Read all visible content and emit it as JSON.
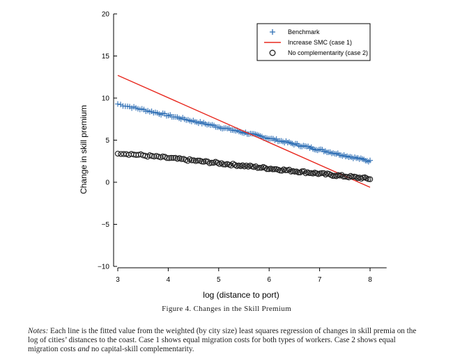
{
  "chart_data": {
    "type": "scatter",
    "title": "",
    "xlabel": "log (distance to port)",
    "ylabel": "Change in skill premium",
    "xlim": [
      3,
      8.3
    ],
    "ylim": [
      -10,
      20
    ],
    "x_ticks": [
      "3",
      "4",
      "5",
      "6",
      "7",
      "8"
    ],
    "y_ticks": [
      "20",
      "15",
      "10",
      "5",
      "0",
      "−5",
      "−10"
    ],
    "x_tick_values": [
      3,
      4,
      5,
      6,
      7,
      8
    ],
    "y_tick_values": [
      20,
      15,
      10,
      5,
      0,
      -5,
      -10
    ],
    "legend_position": "top-right",
    "series": [
      {
        "name": "Benchmark",
        "marker": "plus",
        "color": "#2f6fb5",
        "x_range": [
          3,
          8
        ],
        "y_range": [
          9.3,
          2.5
        ]
      },
      {
        "name": "Increase SMC (case 1)",
        "marker": "line",
        "color": "#e8281e",
        "x_range": [
          3,
          8
        ],
        "y_range": [
          12.7,
          -0.6
        ]
      },
      {
        "name": "No complementarity (case 2)",
        "marker": "circle",
        "color": "#222222",
        "x_range": [
          3,
          8
        ],
        "y_range": [
          3.5,
          0.4
        ]
      }
    ]
  },
  "caption": {
    "figure_label": "Figure 4. Changes in the Skill Premium"
  },
  "notes": {
    "label": "Notes:",
    "text": " Each line is the fitted value from the weighted (by city size) least squares regression of changes in skill premia on the log of cities’ distances to the coast. Case 1 shows equal migration costs for both types of workers. Case 2 shows equal migration costs ",
    "emph": "and",
    "tail": " no capital-skill complementarity."
  }
}
